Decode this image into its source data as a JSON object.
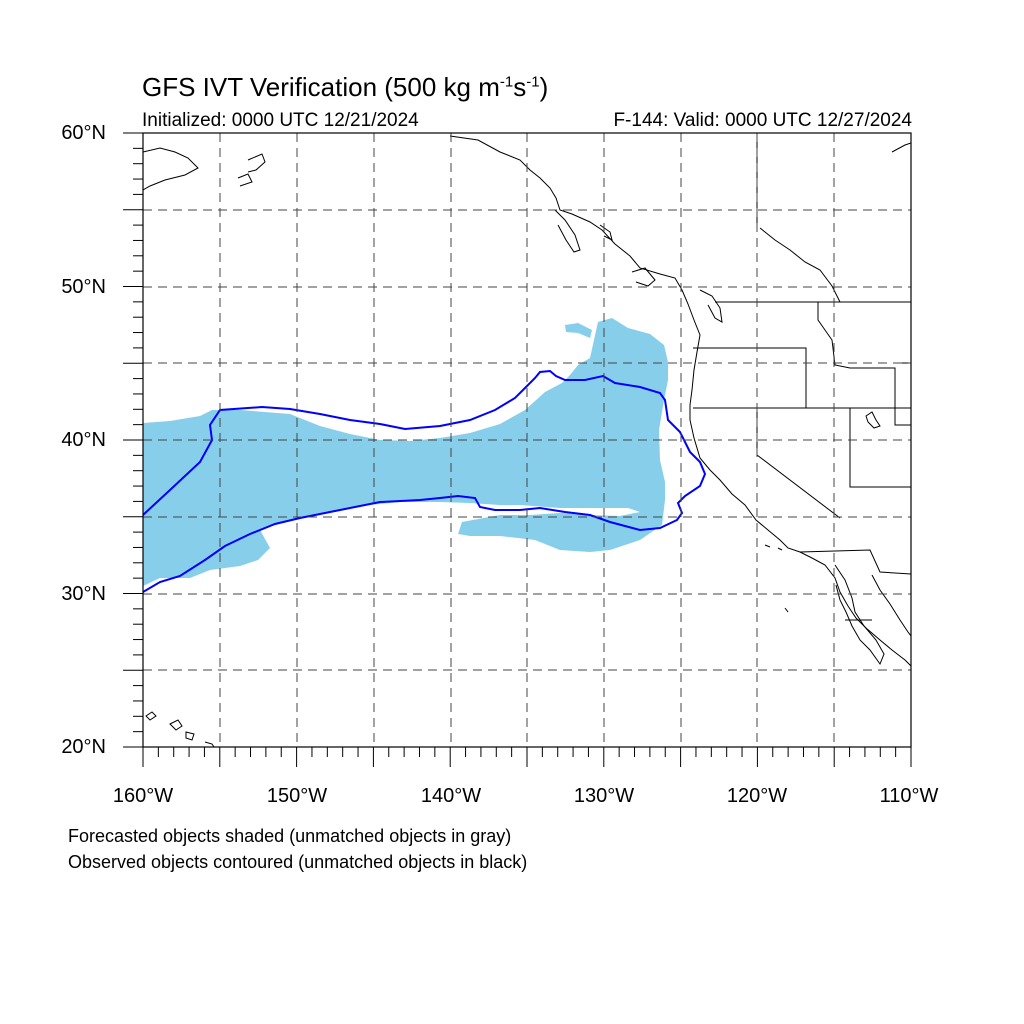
{
  "title": {
    "main": "GFS IVT Verification (500 kg m",
    "sup1": "-1",
    "mid": "s",
    "sup2": "-1",
    "end": ")"
  },
  "initialized": "Initialized: 0000 UTC 12/21/2024",
  "valid": "F-144: Valid: 0000 UTC 12/27/2024",
  "map": {
    "projection": "cylindrical-equidistant",
    "lon_range": [
      -160,
      -110
    ],
    "lat_range": [
      20,
      60
    ],
    "grid_lines": "dashed, every 5 degrees",
    "lat_labels": [
      "60°N",
      "50°N",
      "40°N",
      "30°N",
      "20°N"
    ],
    "lon_labels": [
      "160°W",
      "150°W",
      "140°W",
      "130°W",
      "120°W",
      "110°W"
    ],
    "colors": {
      "forecast_fill": "#87ceeb",
      "observed_contour": "#0000ff",
      "coastline": "#000000",
      "grid": "#444444"
    }
  },
  "legend": {
    "forecast": "Forecasted objects shaded (unmatched objects in gray)",
    "observed": "Observed objects contoured (unmatched objects in black)"
  }
}
